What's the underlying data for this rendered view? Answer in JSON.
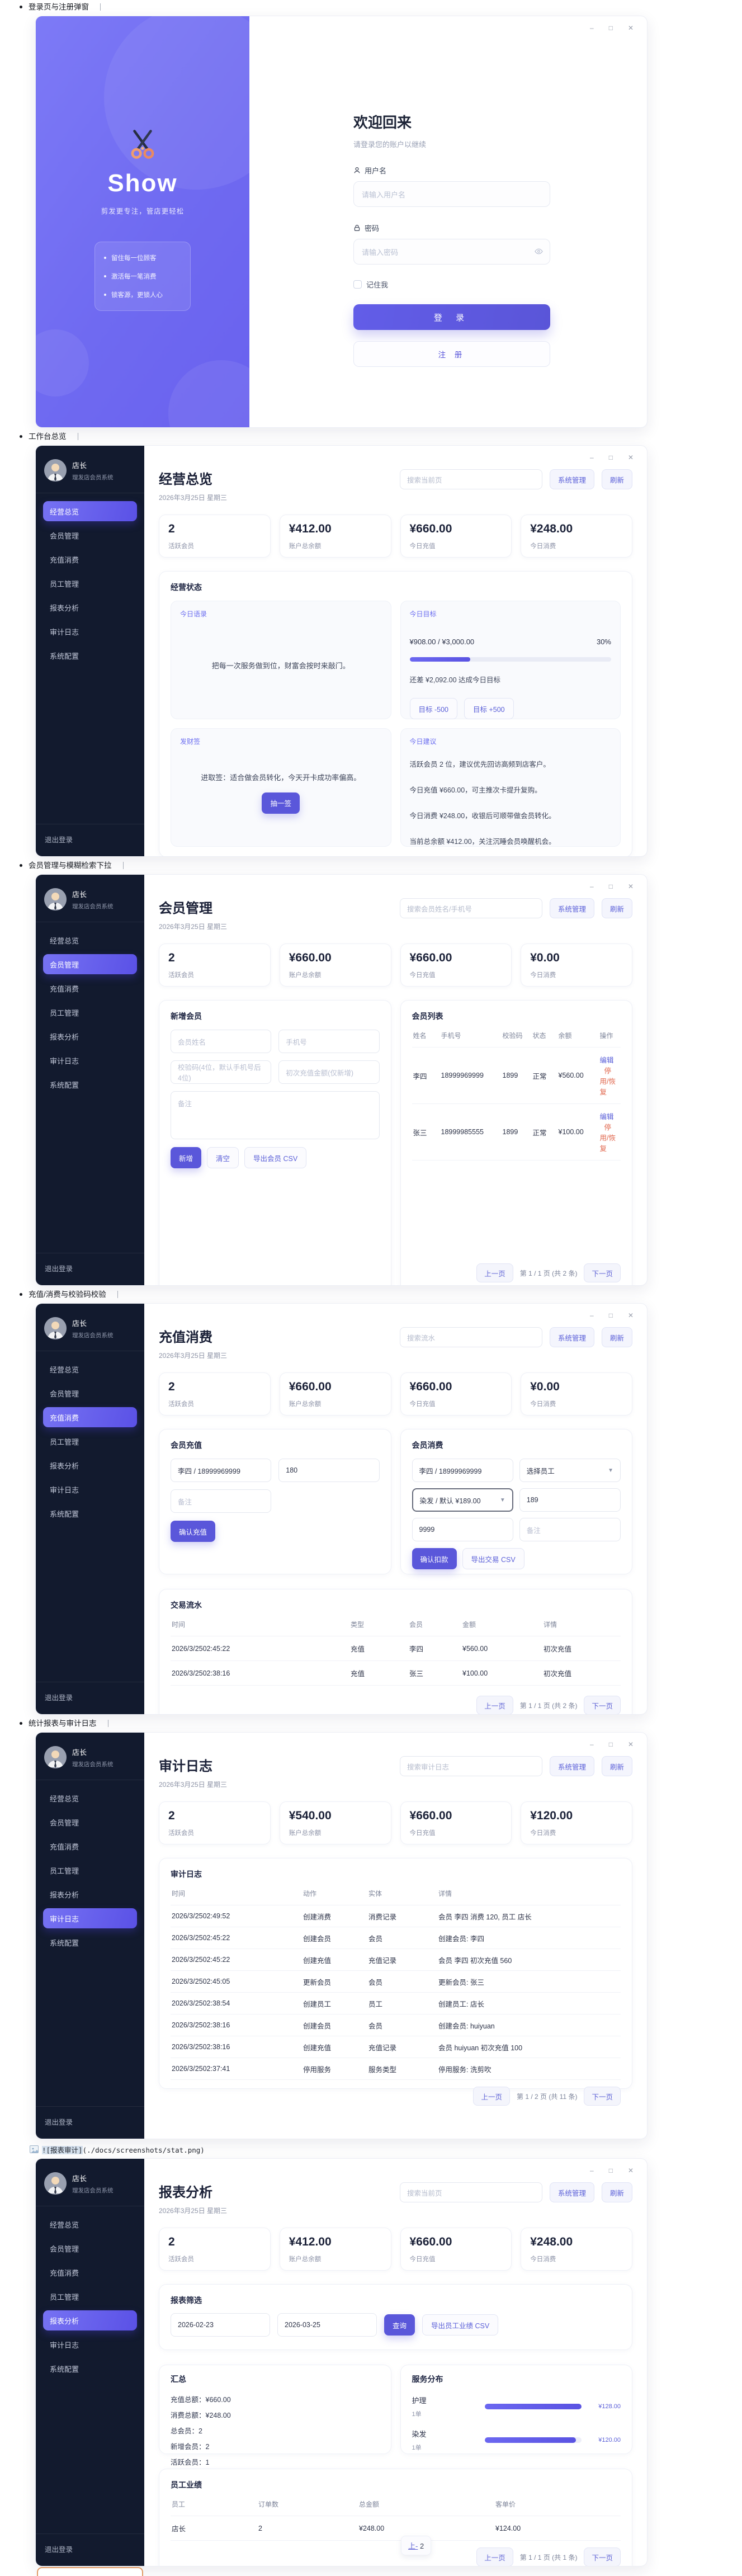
{
  "page": {
    "bullets": [
      "登录页与注册弹窗",
      "工作台总览",
      "会员管理与模糊检索下拉",
      "充值/消费与校验码校验",
      "统计报表与审计日志"
    ],
    "md_image_sel": "![报表审计]",
    "md_image_rest": "(./docs/screenshots/stat.png)"
  },
  "common": {
    "win": [
      "–",
      "□",
      "✕"
    ],
    "user": "店长",
    "system": "理发店会员系统",
    "date": "2026年3月25日 星期三",
    "sys_btn": "系统管理",
    "refresh_btn": "刷新",
    "logout": "退出登录",
    "prev": "上一页",
    "next": "下一页",
    "sidebar": [
      "经营总览",
      "会员管理",
      "充值消费",
      "员工管理",
      "报表分析",
      "审计日志",
      "系统配置"
    ]
  },
  "login": {
    "brand": "Show",
    "tagline": "剪发更专注，管店更轻松",
    "features": [
      "留住每一位顾客",
      "激活每一笔消费",
      "锁客源，更锁人心"
    ],
    "title": "欢迎回来",
    "subtitle": "请登录您的账户以继续",
    "username_label": "用户名",
    "username_placeholder": "请输入用户名",
    "password_label": "密码",
    "password_placeholder": "请输入密码",
    "remember_label": "记住我",
    "login_btn": "登 录",
    "register_btn": "注 册"
  },
  "dashboard": {
    "active": 0,
    "title": "经营总览",
    "search_placeholder": "搜索当前页",
    "stats": [
      {
        "value": "2",
        "label": "活跃会员"
      },
      {
        "value": "¥412.00",
        "label": "账户总余额"
      },
      {
        "value": "¥660.00",
        "label": "今日充值"
      },
      {
        "value": "¥248.00",
        "label": "今日消费"
      }
    ],
    "status_title": "经营状态",
    "quote_label": "今日语录",
    "quote": "把每一次服务做到位，财富会按时来敲门。",
    "goal_label": "今日目标",
    "goal_value": "¥908.00 / ¥3,000.00",
    "goal_pct_text": "30%",
    "goal_pct": 30,
    "goal_gap": "还差 ¥2,092.00 达成今日目标",
    "goal_minus": "目标 -500",
    "goal_plus": "目标 +500",
    "fortune_label": "发财签",
    "fortune_text": "进取签：适合做会员转化，今天开卡成功率偏高。",
    "fortune_btn": "抽一签",
    "advice_label": "今日建议",
    "advice": [
      "活跃会员 2 位，建议优先回访高频到店客户。",
      "今日充值 ¥660.00，可主推次卡提升复购。",
      "今日消费 ¥248.00，收银后可顺带做会员转化。",
      "当前总余额 ¥412.00，关注沉睡会员唤醒机会。"
    ]
  },
  "members": {
    "active": 1,
    "title": "会员管理",
    "search_placeholder": "搜索会员姓名/手机号",
    "stats": [
      {
        "value": "2",
        "label": "活跃会员"
      },
      {
        "value": "¥660.00",
        "label": "账户总余额"
      },
      {
        "value": "¥660.00",
        "label": "今日充值"
      },
      {
        "value": "¥0.00",
        "label": "今日消费"
      }
    ],
    "add_title": "新增会员",
    "ph_name": "会员姓名",
    "ph_phone": "手机号",
    "ph_code": "校验码(4位，默认手机号后4位)",
    "ph_first": "初次充值金额(仅新增)",
    "ph_note": "备注",
    "btn_add": "新增",
    "btn_clear": "清空",
    "btn_export": "导出会员 CSV",
    "list_title": "会员列表",
    "headers": [
      "姓名",
      "手机号",
      "校验码",
      "状态",
      "余额",
      "操作"
    ],
    "rows": [
      [
        "李四",
        "18999969999",
        "1899",
        "正常",
        "¥560.00",
        "编辑",
        "停用/恢复"
      ],
      [
        "张三",
        "18999985555",
        "1899",
        "正常",
        "¥100.00",
        "编辑",
        "停用/恢复"
      ]
    ],
    "page_info": "第 1 / 1 页 (共 2 条)"
  },
  "recharge": {
    "active": 2,
    "title": "充值消费",
    "search_placeholder": "搜索流水",
    "stats": [
      {
        "value": "2",
        "label": "活跃会员"
      },
      {
        "value": "¥660.00",
        "label": "账户总余额"
      },
      {
        "value": "¥660.00",
        "label": "今日充值"
      },
      {
        "value": "¥0.00",
        "label": "今日消费"
      }
    ],
    "topup_title": "会员充值",
    "topup_member": "李四 / 18999969999",
    "topup_amount": "180",
    "ph_note": "备注",
    "btn_topup": "确认充值",
    "consume_title": "会员消费",
    "consume_member": "李四 / 18999969999",
    "staff_select": "选择员工",
    "service_select": "染发 / 默认 ¥189.00",
    "consume_amount": "189",
    "consume_code": "9999",
    "btn_consume": "确认扣款",
    "btn_export": "导出交易 CSV",
    "flow_title": "交易流水",
    "headers": [
      "时间",
      "类型",
      "会员",
      "金额",
      "详情"
    ],
    "rows": [
      [
        "2026/3/2502:45:22",
        "充值",
        "李四",
        "¥560.00",
        "初次充值"
      ],
      [
        "2026/3/2502:38:16",
        "充值",
        "张三",
        "¥100.00",
        "初次充值"
      ]
    ],
    "page_info": "第 1 / 1 页 (共 2 条)"
  },
  "audit": {
    "active": 5,
    "title": "审计日志",
    "search_placeholder": "搜索审计日志",
    "stats": [
      {
        "value": "2",
        "label": "活跃会员"
      },
      {
        "value": "¥540.00",
        "label": "账户总余额"
      },
      {
        "value": "¥660.00",
        "label": "今日充值"
      },
      {
        "value": "¥120.00",
        "label": "今日消费"
      }
    ],
    "log_title": "审计日志",
    "headers": [
      "时间",
      "动作",
      "实体",
      "详情"
    ],
    "rows": [
      [
        "2026/3/2502:49:52",
        "创建消费",
        "消费记录",
        "会员 李四 消费 120, 员工 店长"
      ],
      [
        "2026/3/2502:45:22",
        "创建会员",
        "会员",
        "创建会员: 李四"
      ],
      [
        "2026/3/2502:45:22",
        "创建充值",
        "充值记录",
        "会员 李四 初次充值 560"
      ],
      [
        "2026/3/2502:45:05",
        "更新会员",
        "会员",
        "更新会员: 张三"
      ],
      [
        "2026/3/2502:38:54",
        "创建员工",
        "员工",
        "创建员工: 店长"
      ],
      [
        "2026/3/2502:38:16",
        "创建会员",
        "会员",
        "创建会员: huiyuan"
      ],
      [
        "2026/3/2502:38:16",
        "创建充值",
        "充值记录",
        "会员 huiyuan 初次充值 100"
      ],
      [
        "2026/3/2502:37:41",
        "停用服务",
        "服务类型",
        "停用服务: 洗剪吹"
      ]
    ],
    "page_info": "第 1 / 2 页 (共 11 条)"
  },
  "report": {
    "active": 4,
    "title": "报表分析",
    "search_placeholder": "搜索当前页",
    "stats": [
      {
        "value": "2",
        "label": "活跃会员"
      },
      {
        "value": "¥412.00",
        "label": "账户总余额"
      },
      {
        "value": "¥660.00",
        "label": "今日充值"
      },
      {
        "value": "¥248.00",
        "label": "今日消费"
      }
    ],
    "filter_title": "报表筛选",
    "date_from": "2026-02-23",
    "date_to": "2026-03-25",
    "btn_query": "查询",
    "btn_export": "导出员工业绩 CSV",
    "summary_title": "汇总",
    "summary": [
      "充值总额：¥660.00",
      "消费总额：¥248.00",
      "总会员：2",
      "新增会员：2",
      "活跃会员：1"
    ],
    "dist_title": "服务分布",
    "services": [
      {
        "name": "护理",
        "count": "1单",
        "value": "¥128.00",
        "pct": 100
      },
      {
        "name": "染发",
        "count": "1单",
        "value": "¥120.00",
        "pct": 94
      }
    ],
    "perf_title": "员工业绩",
    "headers": [
      "员工",
      "订单数",
      "总金额",
      "客单价"
    ],
    "rows": [
      [
        "店长",
        "2",
        "¥248.00",
        "¥124.00"
      ]
    ],
    "artifact_a": "上-",
    "artifact_b": " 2",
    "page_info": "第 1 / 1 页 (共 1 条)"
  },
  "chart_data": {
    "type": "bar",
    "title": "服务分布",
    "categories": [
      "护理",
      "染发"
    ],
    "values": [
      128,
      120
    ],
    "unit": "¥",
    "orders": [
      1,
      1
    ]
  }
}
